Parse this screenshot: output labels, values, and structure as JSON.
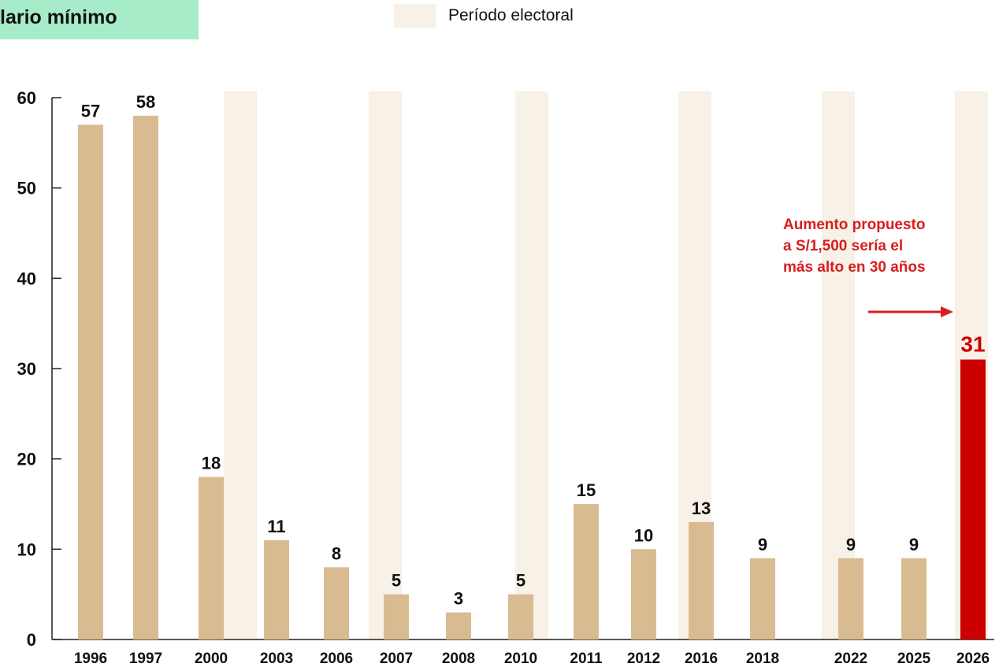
{
  "header": {
    "title": "lario mínimo",
    "legend_label": "Período electoral"
  },
  "annotation": {
    "lines": [
      "Aumento propuesto",
      "a S/1,500 sería el",
      "más alto en 30 años"
    ]
  },
  "colors": {
    "bar": "#d9bb92",
    "highlight": "#cc0000",
    "electoral_band": "#f7f1e7",
    "annotation": "#d81e1e",
    "title_background": "#a6ecc8"
  },
  "chart_data": {
    "type": "bar",
    "categories": [
      "1996",
      "1997",
      "2000",
      "2003",
      "2006",
      "2007",
      "2008",
      "2010",
      "2011",
      "2012",
      "2016",
      "2018",
      "2022",
      "2025",
      "2026"
    ],
    "values": [
      57,
      58,
      18,
      11,
      8,
      5,
      3,
      5,
      15,
      10,
      13,
      9,
      9,
      9,
      31
    ],
    "data_labels": [
      "57",
      "58",
      "18",
      "11",
      "8",
      "5",
      "3",
      "5",
      "15",
      "10",
      "13",
      "9",
      "9",
      "9",
      "31"
    ],
    "highlight_category": "2026",
    "electoral_periods": [
      "2001",
      "2006",
      "2011",
      "2016",
      "2021",
      "2026"
    ],
    "ylim": [
      0,
      60
    ],
    "yticks": [
      0,
      10,
      20,
      30,
      40,
      50,
      60
    ],
    "grid": false,
    "legend_position": "top-center"
  }
}
